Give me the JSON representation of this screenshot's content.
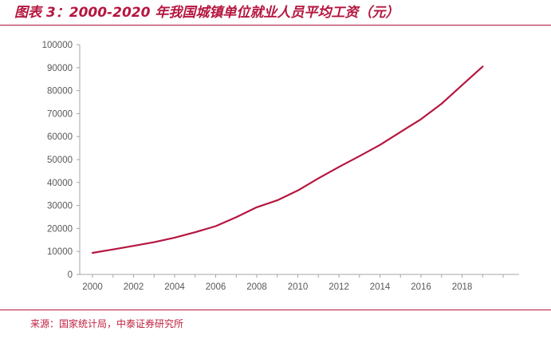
{
  "title": "图表 3：2000-2020 年我国城镇单位就业人员平均工资（元）",
  "source": "来源：国家统计局，中泰证券研究所",
  "colors": {
    "accent": "#b5163f",
    "line": "#b5163f",
    "axis": "#a6a6a6",
    "text": "#595959"
  },
  "chart_data": {
    "type": "line",
    "title": "",
    "xlabel": "",
    "ylabel": "",
    "x": [
      2000,
      2001,
      2002,
      2003,
      2004,
      2005,
      2006,
      2007,
      2008,
      2009,
      2010,
      2011,
      2012,
      2013,
      2014,
      2015,
      2016,
      2017,
      2018,
      2019
    ],
    "series": [
      {
        "values": [
          9371,
          10870,
          12422,
          14040,
          16024,
          18364,
          21001,
          24932,
          29229,
          32244,
          36539,
          41799,
          46769,
          51483,
          56360,
          62029,
          67569,
          74318,
          82413,
          90501
        ]
      }
    ],
    "ylim": [
      0,
      100000
    ],
    "yticks": [
      "0",
      "10000",
      "20000",
      "30000",
      "40000",
      "50000",
      "60000",
      "70000",
      "80000",
      "90000",
      "100000"
    ],
    "xticks": [
      "2000",
      "2002",
      "2004",
      "2006",
      "2008",
      "2010",
      "2012",
      "2014",
      "2016",
      "2018"
    ],
    "grid": false,
    "legend": "none"
  }
}
